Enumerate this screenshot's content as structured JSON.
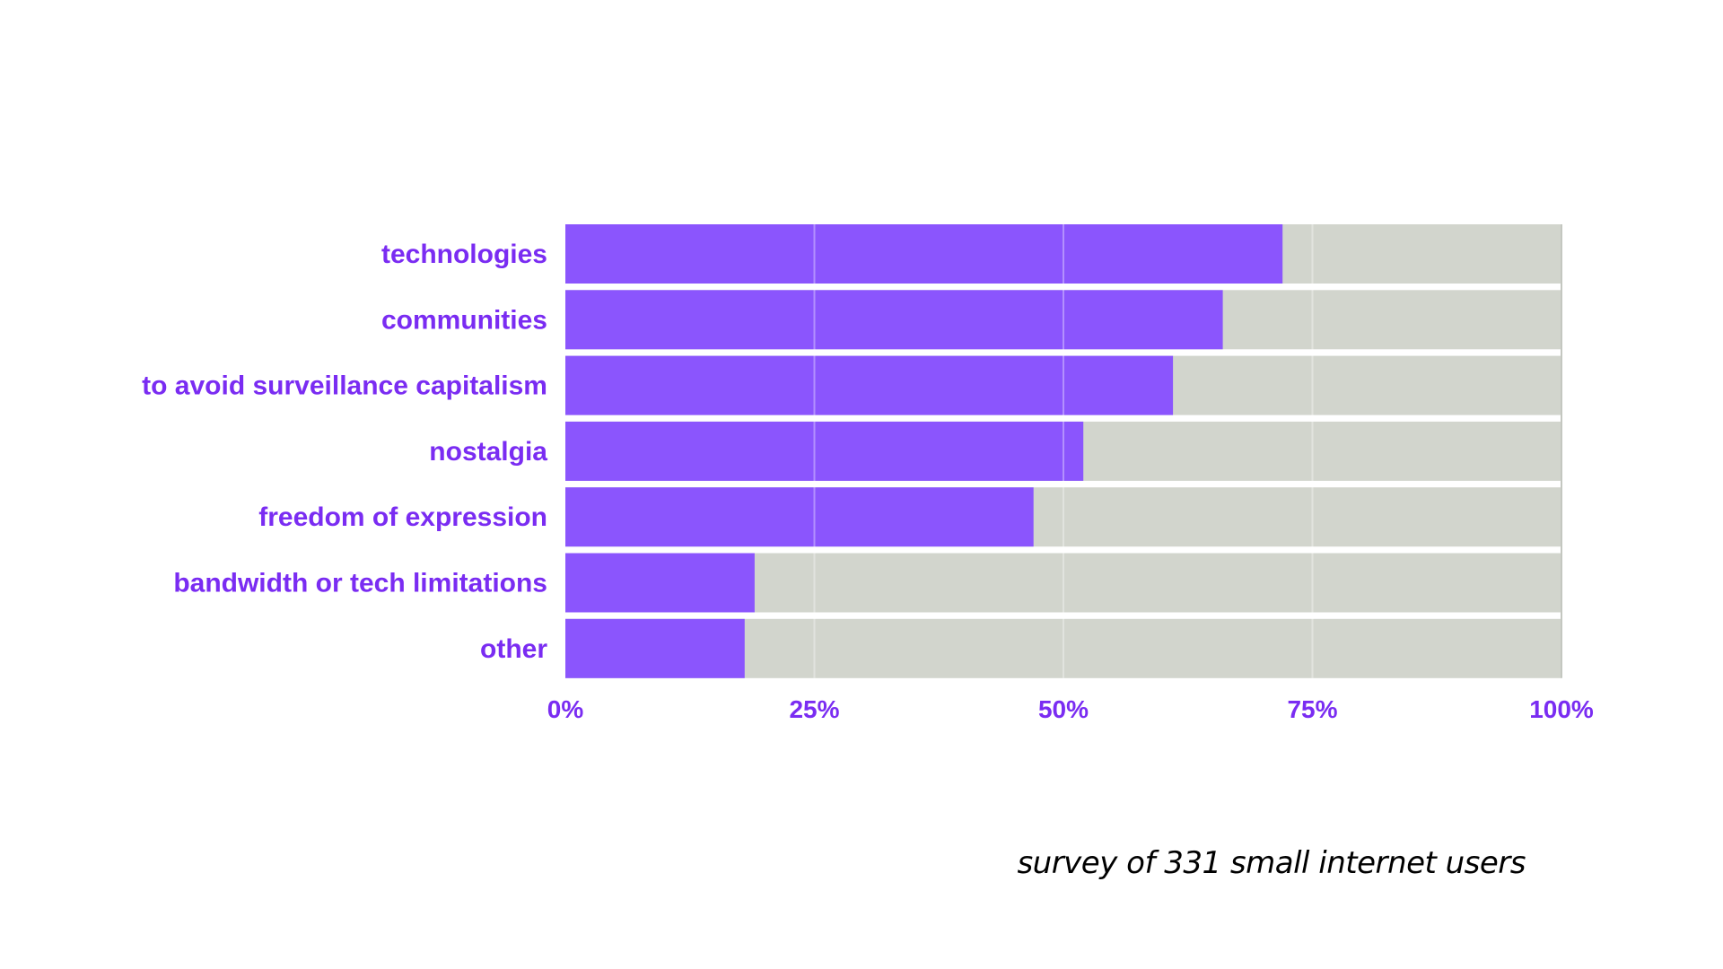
{
  "chart_data": {
    "type": "bar",
    "orientation": "horizontal",
    "stacked_to_100": true,
    "categories": [
      "technologies",
      "communities",
      "to avoid surveillance capitalism",
      "nostalgia",
      "freedom of expression",
      "bandwidth or tech limitations",
      "other"
    ],
    "values": [
      72,
      66,
      61,
      52,
      47,
      19,
      18
    ],
    "xlim": [
      0,
      100
    ],
    "xticks": [
      "0%",
      "25%",
      "50%",
      "75%",
      "100%"
    ],
    "grid": true,
    "legend": "none",
    "colors": {
      "bar": "#8b55fd",
      "remainder": "#d2d5cd",
      "label": "#7a2cf2",
      "gridline": "#ffffff"
    }
  },
  "caption": "survey of 331 small internet users"
}
